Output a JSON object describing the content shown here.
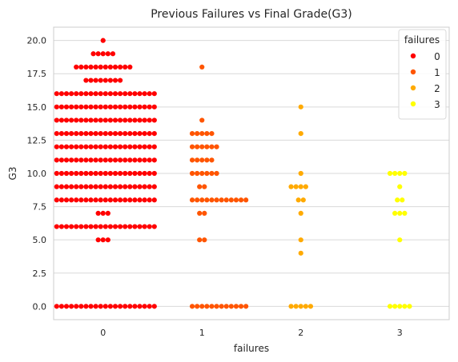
{
  "chart_data": {
    "type": "scatter",
    "style": "swarm",
    "title": "Previous Failures vs Final Grade(G3)",
    "xlabel": "failures",
    "ylabel": "G3",
    "categories": [
      "0",
      "1",
      "2",
      "3"
    ],
    "ylim": [
      -1,
      21
    ],
    "yticks": [
      "0.0",
      "2.5",
      "5.0",
      "7.5",
      "10.0",
      "12.5",
      "15.0",
      "17.5",
      "20.0"
    ],
    "grid": "horizontal",
    "legend": {
      "title": "failures",
      "position": "top-right",
      "entries": [
        "0",
        "1",
        "2",
        "3"
      ]
    },
    "colors": [
      "#ff0000",
      "#ff5500",
      "#ffaa00",
      "#ffff00"
    ],
    "series": [
      {
        "name": "0",
        "counts": [
          {
            "y": 0,
            "n": 21
          },
          {
            "y": 5,
            "n": 3
          },
          {
            "y": 6,
            "n": 21
          },
          {
            "y": 7,
            "n": 3
          },
          {
            "y": 8,
            "n": 21
          },
          {
            "y": 9,
            "n": 21
          },
          {
            "y": 10,
            "n": 21
          },
          {
            "y": 11,
            "n": 21
          },
          {
            "y": 12,
            "n": 21
          },
          {
            "y": 13,
            "n": 21
          },
          {
            "y": 14,
            "n": 21
          },
          {
            "y": 15,
            "n": 21
          },
          {
            "y": 16,
            "n": 21
          },
          {
            "y": 17,
            "n": 8
          },
          {
            "y": 18,
            "n": 12
          },
          {
            "y": 19,
            "n": 5
          },
          {
            "y": 20,
            "n": 1
          }
        ]
      },
      {
        "name": "1",
        "counts": [
          {
            "y": 0,
            "n": 12
          },
          {
            "y": 5,
            "n": 2
          },
          {
            "y": 7,
            "n": 2
          },
          {
            "y": 8,
            "n": 12
          },
          {
            "y": 9,
            "n": 2
          },
          {
            "y": 10,
            "n": 6
          },
          {
            "y": 11,
            "n": 5
          },
          {
            "y": 12,
            "n": 6
          },
          {
            "y": 13,
            "n": 5
          },
          {
            "y": 14,
            "n": 1
          },
          {
            "y": 18,
            "n": 1
          }
        ]
      },
      {
        "name": "2",
        "counts": [
          {
            "y": 0,
            "n": 5
          },
          {
            "y": 4,
            "n": 1
          },
          {
            "y": 5,
            "n": 1
          },
          {
            "y": 7,
            "n": 1
          },
          {
            "y": 8,
            "n": 2
          },
          {
            "y": 9,
            "n": 4
          },
          {
            "y": 10,
            "n": 1
          },
          {
            "y": 13,
            "n": 1
          },
          {
            "y": 15,
            "n": 1
          }
        ]
      },
      {
        "name": "3",
        "counts": [
          {
            "y": 0,
            "n": 5
          },
          {
            "y": 5,
            "n": 1
          },
          {
            "y": 7,
            "n": 3
          },
          {
            "y": 8,
            "n": 2
          },
          {
            "y": 9,
            "n": 1
          },
          {
            "y": 10,
            "n": 4
          }
        ]
      }
    ]
  }
}
